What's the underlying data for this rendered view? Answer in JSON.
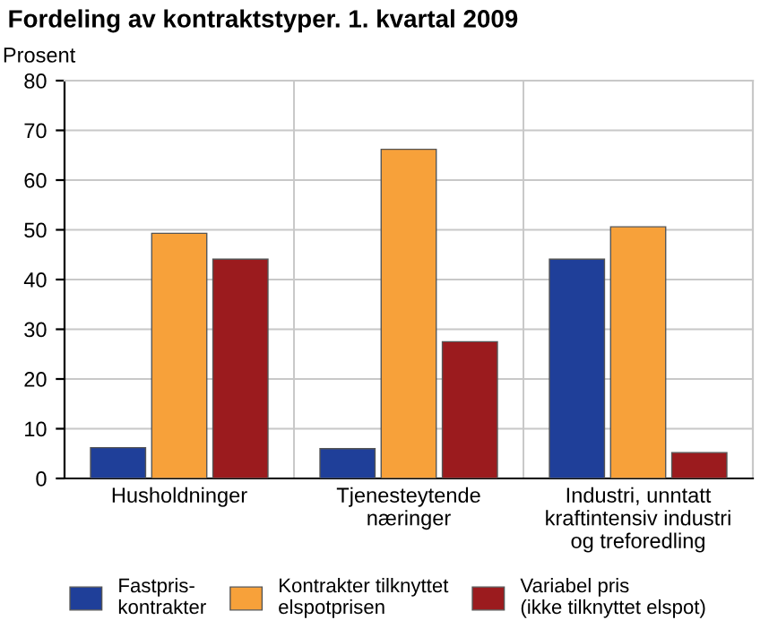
{
  "chart_data": {
    "type": "bar",
    "title": "Fordeling av kontraktstyper. 1. kvartal 2009",
    "ylabel": "Prosent",
    "categories": [
      "Husholdninger",
      "Tjenesteytende\nnæringer",
      "Industri, unntatt\nkraftintensiv industri\nog treforedling"
    ],
    "series": [
      {
        "name": "Fastpris-\nkontrakter",
        "color": "#1f3f99",
        "values": [
          6.2,
          6,
          44.1
        ]
      },
      {
        "name": "Kontrakter tilknyttet\nelspotprisen",
        "color": "#f7a13a",
        "values": [
          49.3,
          66.2,
          50.6
        ]
      },
      {
        "name": "Variabel pris\n(ikke tilknyttet elspot)",
        "color": "#9b1b1e",
        "values": [
          44.1,
          27.5,
          5.2
        ]
      }
    ],
    "ylim": [
      0,
      80
    ],
    "yticks": [
      0,
      10,
      20,
      30,
      40,
      50,
      60,
      70,
      80
    ],
    "grid": true,
    "legend": "bottom"
  }
}
